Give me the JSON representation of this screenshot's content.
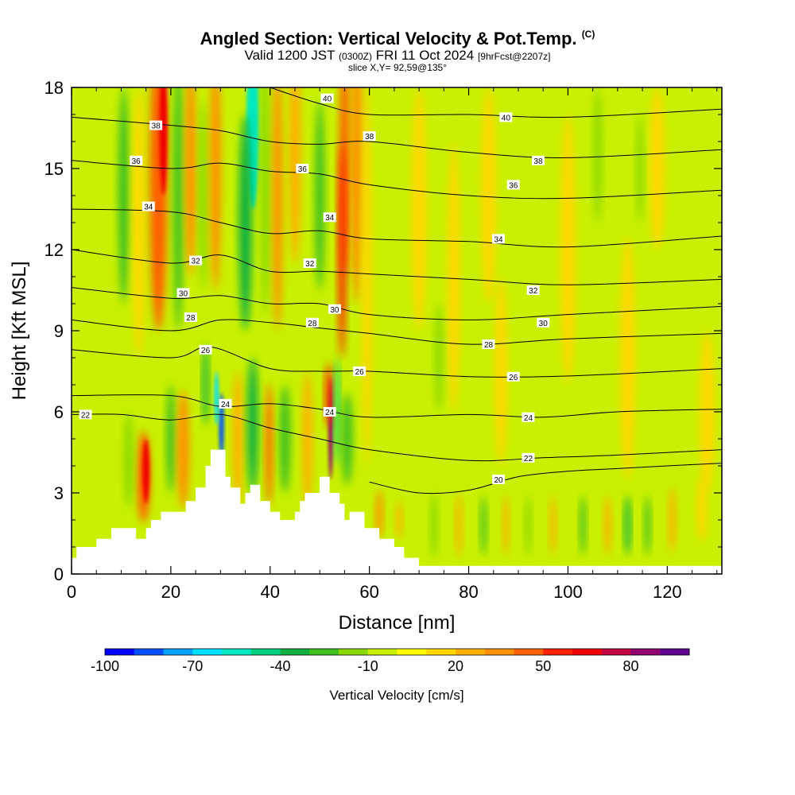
{
  "header": {
    "title_main": "Angled Section: Vertical Velocity & Pot.Temp.",
    "title_mark": "(C)",
    "valid_prefix": "Valid 1200 JST",
    "valid_utc": "(0300Z)",
    "valid_date": "FRI 11 Oct 2024",
    "valid_fcst": "[9hrFcst@2207z]",
    "slice": "slice X,Y= 92,59@135°"
  },
  "colors": {
    "background_field": "#c8f000",
    "terrain": "#ffffff",
    "contour": "#000000"
  },
  "chart_data": {
    "type": "heatmap",
    "xlabel": "Distance [nm]",
    "ylabel": "Height [Kft MSL]",
    "xlim": [
      0,
      131
    ],
    "ylim": [
      0,
      18
    ],
    "x_ticks": [
      0,
      20,
      40,
      60,
      80,
      100,
      120
    ],
    "y_ticks": [
      0,
      3,
      6,
      9,
      12,
      15,
      18
    ],
    "colorbar": {
      "label": "Vertical Velocity [cm/s]",
      "min": -100,
      "max": 100,
      "tick_labels": [
        "-100",
        "-70",
        "-40",
        "-10",
        "20",
        "50",
        "80"
      ],
      "tick_values": [
        -100,
        -70,
        -40,
        -10,
        20,
        50,
        80
      ],
      "colors": [
        "#0000ff",
        "#0050ff",
        "#00a0ff",
        "#00e0ff",
        "#00e8c0",
        "#00d080",
        "#10b040",
        "#40c020",
        "#88d800",
        "#c8f000",
        "#ffff00",
        "#ffd800",
        "#ffb000",
        "#ff9000",
        "#ff6000",
        "#ff2000",
        "#f00000",
        "#c00040",
        "#900070",
        "#600090"
      ]
    },
    "terrain_profile": [
      [
        0,
        0.6
      ],
      [
        1,
        0.6
      ],
      [
        1,
        1.0
      ],
      [
        5,
        1.0
      ],
      [
        5,
        1.3
      ],
      [
        8,
        1.3
      ],
      [
        8,
        1.7
      ],
      [
        13,
        1.7
      ],
      [
        13,
        1.3
      ],
      [
        15,
        1.3
      ],
      [
        15,
        1.7
      ],
      [
        16,
        1.7
      ],
      [
        16,
        2.0
      ],
      [
        18,
        2.0
      ],
      [
        18,
        2.3
      ],
      [
        23,
        2.3
      ],
      [
        23,
        2.7
      ],
      [
        25,
        2.7
      ],
      [
        25,
        3.2
      ],
      [
        27,
        3.2
      ],
      [
        27,
        4.0
      ],
      [
        28,
        4.0
      ],
      [
        28,
        4.6
      ],
      [
        31,
        4.6
      ],
      [
        31,
        3.6
      ],
      [
        32,
        3.6
      ],
      [
        32,
        3.2
      ],
      [
        34,
        3.2
      ],
      [
        34,
        2.6
      ],
      [
        35,
        2.6
      ],
      [
        35,
        3.0
      ],
      [
        36,
        3.0
      ],
      [
        36,
        3.3
      ],
      [
        38,
        3.3
      ],
      [
        38,
        2.7
      ],
      [
        40,
        2.7
      ],
      [
        40,
        2.3
      ],
      [
        42,
        2.3
      ],
      [
        42,
        2.0
      ],
      [
        45,
        2.0
      ],
      [
        45,
        2.3
      ],
      [
        46,
        2.3
      ],
      [
        46,
        2.7
      ],
      [
        47,
        2.7
      ],
      [
        47,
        3.0
      ],
      [
        50,
        3.0
      ],
      [
        50,
        3.6
      ],
      [
        52,
        3.6
      ],
      [
        52,
        3.0
      ],
      [
        54,
        3.0
      ],
      [
        54,
        2.6
      ],
      [
        55,
        2.6
      ],
      [
        55,
        2.0
      ],
      [
        56,
        2.0
      ],
      [
        56,
        2.3
      ],
      [
        59,
        2.3
      ],
      [
        59,
        1.7
      ],
      [
        62,
        1.7
      ],
      [
        62,
        1.3
      ],
      [
        65,
        1.3
      ],
      [
        65,
        1.0
      ],
      [
        67,
        1.0
      ],
      [
        67,
        0.6
      ],
      [
        70,
        0.6
      ],
      [
        70,
        0.3
      ],
      [
        131,
        0.3
      ]
    ],
    "theta_contours": [
      {
        "label": "20",
        "points": [
          [
            60,
            3.4
          ],
          [
            70,
            3.0
          ],
          [
            80,
            3.1
          ],
          [
            90,
            3.6
          ],
          [
            100,
            3.8
          ],
          [
            110,
            3.9
          ],
          [
            120,
            4.0
          ],
          [
            131,
            4.1
          ]
        ]
      },
      {
        "label": "22",
        "points": [
          [
            0,
            5.9
          ],
          [
            10,
            5.9
          ],
          [
            20,
            5.7
          ],
          [
            30,
            5.9
          ],
          [
            40,
            5.4
          ],
          [
            50,
            5.0
          ],
          [
            60,
            4.6
          ],
          [
            80,
            4.2
          ],
          [
            95,
            4.3
          ],
          [
            110,
            4.4
          ],
          [
            131,
            4.6
          ]
        ]
      },
      {
        "label": "24",
        "points": [
          [
            0,
            6.6
          ],
          [
            20,
            6.6
          ],
          [
            30,
            6.2
          ],
          [
            40,
            6.3
          ],
          [
            50,
            6.1
          ],
          [
            60,
            5.8
          ],
          [
            80,
            5.9
          ],
          [
            95,
            5.8
          ],
          [
            110,
            6.0
          ],
          [
            131,
            6.1
          ]
        ]
      },
      {
        "label": "26",
        "points": [
          [
            0,
            8.3
          ],
          [
            20,
            8.0
          ],
          [
            28,
            8.4
          ],
          [
            40,
            7.6
          ],
          [
            50,
            7.5
          ],
          [
            60,
            7.5
          ],
          [
            80,
            7.3
          ],
          [
            95,
            7.3
          ],
          [
            110,
            7.4
          ],
          [
            131,
            7.6
          ]
        ]
      },
      {
        "label": "28",
        "points": [
          [
            0,
            9.4
          ],
          [
            20,
            9.0
          ],
          [
            30,
            9.4
          ],
          [
            40,
            9.3
          ],
          [
            50,
            9.1
          ],
          [
            60,
            8.9
          ],
          [
            80,
            8.5
          ],
          [
            100,
            8.7
          ],
          [
            131,
            8.9
          ]
        ]
      },
      {
        "label": "30",
        "points": [
          [
            0,
            10.6
          ],
          [
            20,
            10.2
          ],
          [
            30,
            10.3
          ],
          [
            40,
            10.0
          ],
          [
            50,
            10.0
          ],
          [
            60,
            9.6
          ],
          [
            80,
            9.4
          ],
          [
            100,
            9.6
          ],
          [
            131,
            9.9
          ]
        ]
      },
      {
        "label": "32",
        "points": [
          [
            0,
            12.0
          ],
          [
            20,
            11.5
          ],
          [
            30,
            11.8
          ],
          [
            40,
            11.2
          ],
          [
            50,
            11.2
          ],
          [
            60,
            11.1
          ],
          [
            80,
            10.9
          ],
          [
            100,
            10.7
          ],
          [
            131,
            10.9
          ]
        ]
      },
      {
        "label": "34",
        "points": [
          [
            0,
            13.5
          ],
          [
            20,
            13.4
          ],
          [
            30,
            13.0
          ],
          [
            40,
            12.6
          ],
          [
            50,
            12.7
          ],
          [
            60,
            12.4
          ],
          [
            80,
            12.3
          ],
          [
            100,
            12.1
          ],
          [
            131,
            12.5
          ]
        ]
      },
      {
        "label": "36",
        "points": [
          [
            0,
            15.3
          ],
          [
            20,
            15.0
          ],
          [
            30,
            15.2
          ],
          [
            40,
            14.9
          ],
          [
            50,
            14.8
          ],
          [
            60,
            14.4
          ],
          [
            80,
            14.0
          ],
          [
            100,
            13.9
          ],
          [
            131,
            14.2
          ]
        ]
      },
      {
        "label": "38",
        "points": [
          [
            0,
            16.9
          ],
          [
            20,
            16.6
          ],
          [
            30,
            16.4
          ],
          [
            40,
            16.0
          ],
          [
            50,
            15.9
          ],
          [
            60,
            16.0
          ],
          [
            80,
            15.6
          ],
          [
            100,
            15.4
          ],
          [
            131,
            15.7
          ]
        ]
      },
      {
        "label": "40",
        "points": [
          [
            40,
            18.0
          ],
          [
            50,
            17.4
          ],
          [
            60,
            17.0
          ],
          [
            80,
            17.0
          ],
          [
            100,
            16.9
          ],
          [
            131,
            17.2
          ]
        ]
      }
    ],
    "contour_label_positions": [
      {
        "text": "20",
        "x": 86,
        "y": 3.5
      },
      {
        "text": "22",
        "x": 2.8,
        "y": 5.9
      },
      {
        "text": "22",
        "x": 92,
        "y": 4.3
      },
      {
        "text": "24",
        "x": 31,
        "y": 6.3
      },
      {
        "text": "24",
        "x": 52,
        "y": 6.0
      },
      {
        "text": "24",
        "x": 92,
        "y": 5.8
      },
      {
        "text": "26",
        "x": 27,
        "y": 8.3
      },
      {
        "text": "26",
        "x": 58,
        "y": 7.5
      },
      {
        "text": "26",
        "x": 89,
        "y": 7.3
      },
      {
        "text": "28",
        "x": 24,
        "y": 9.5
      },
      {
        "text": "28",
        "x": 48.5,
        "y": 9.3
      },
      {
        "text": "28",
        "x": 84,
        "y": 8.5
      },
      {
        "text": "30",
        "x": 22.5,
        "y": 10.4
      },
      {
        "text": "30",
        "x": 53,
        "y": 9.8
      },
      {
        "text": "30",
        "x": 95,
        "y": 9.3
      },
      {
        "text": "32",
        "x": 25,
        "y": 11.6
      },
      {
        "text": "32",
        "x": 48,
        "y": 11.5
      },
      {
        "text": "32",
        "x": 93,
        "y": 10.5
      },
      {
        "text": "34",
        "x": 15.5,
        "y": 13.6
      },
      {
        "text": "34",
        "x": 52,
        "y": 13.2
      },
      {
        "text": "34",
        "x": 86,
        "y": 12.4
      },
      {
        "text": "36",
        "x": 13,
        "y": 15.3
      },
      {
        "text": "36",
        "x": 46.5,
        "y": 15.0
      },
      {
        "text": "36",
        "x": 89,
        "y": 14.4
      },
      {
        "text": "38",
        "x": 17,
        "y": 16.6
      },
      {
        "text": "38",
        "x": 60,
        "y": 16.2
      },
      {
        "text": "38",
        "x": 94,
        "y": 15.3
      },
      {
        "text": "40",
        "x": 51.5,
        "y": 17.6
      },
      {
        "text": "40",
        "x": 87.5,
        "y": 16.9
      }
    ],
    "velocity_features": [
      {
        "x": 10.5,
        "y": 14.0,
        "w": 2.2,
        "h": 8.0,
        "v": -30
      },
      {
        "x": 13.5,
        "y": 13.0,
        "w": 2.5,
        "h": 10.0,
        "v": 15
      },
      {
        "x": 17.5,
        "y": 14.5,
        "w": 3.5,
        "h": 11.0,
        "v": 40
      },
      {
        "x": 18.5,
        "y": 16.5,
        "w": 1.6,
        "h": 5.0,
        "v": 60
      },
      {
        "x": 21.5,
        "y": 14.0,
        "w": 2.0,
        "h": 10.0,
        "v": -25
      },
      {
        "x": 24.0,
        "y": 15.0,
        "w": 2.2,
        "h": 8.0,
        "v": 35
      },
      {
        "x": 26.5,
        "y": 14.0,
        "w": 1.6,
        "h": 7.0,
        "v": -20
      },
      {
        "x": 29.0,
        "y": 15.0,
        "w": 2.2,
        "h": 9.0,
        "v": 30
      },
      {
        "x": 36.5,
        "y": 16.5,
        "w": 2.6,
        "h": 6.0,
        "v": -60
      },
      {
        "x": 35.0,
        "y": 13.0,
        "w": 2.6,
        "h": 8.0,
        "v": -35
      },
      {
        "x": 39.0,
        "y": 14.5,
        "w": 1.8,
        "h": 10.0,
        "v": -20
      },
      {
        "x": 41.5,
        "y": 14.0,
        "w": 2.0,
        "h": 10.0,
        "v": 30
      },
      {
        "x": 45.0,
        "y": 15.5,
        "w": 2.4,
        "h": 8.0,
        "v": 25
      },
      {
        "x": 55.0,
        "y": 15.5,
        "w": 2.0,
        "h": 9.0,
        "v": 45
      },
      {
        "x": 57.5,
        "y": 15.0,
        "w": 2.4,
        "h": 10.0,
        "v": 35
      },
      {
        "x": 50.0,
        "y": 14.0,
        "w": 2.0,
        "h": 7.0,
        "v": -25
      },
      {
        "x": 59.5,
        "y": 11.0,
        "w": 2.0,
        "h": 14.0,
        "v": 15
      },
      {
        "x": 54.5,
        "y": 12.0,
        "w": 1.6,
        "h": 8.0,
        "v": 50
      },
      {
        "x": 14.5,
        "y": 3.6,
        "w": 2.6,
        "h": 3.4,
        "v": 40
      },
      {
        "x": 15.0,
        "y": 3.8,
        "w": 1.4,
        "h": 2.4,
        "v": 60
      },
      {
        "x": 20.0,
        "y": 5.0,
        "w": 1.8,
        "h": 4.0,
        "v": -30
      },
      {
        "x": 22.5,
        "y": 4.6,
        "w": 2.4,
        "h": 4.4,
        "v": 35
      },
      {
        "x": 11.5,
        "y": 4.2,
        "w": 1.8,
        "h": 3.5,
        "v": -20
      },
      {
        "x": 27.0,
        "y": 7.0,
        "w": 1.2,
        "h": 3.0,
        "v": -40
      },
      {
        "x": 30.2,
        "y": 5.5,
        "w": 1.0,
        "h": 2.4,
        "v": -90
      },
      {
        "x": 29.2,
        "y": 6.5,
        "w": 0.9,
        "h": 2.0,
        "v": -70
      },
      {
        "x": 33.5,
        "y": 5.0,
        "w": 2.0,
        "h": 5.0,
        "v": 20
      },
      {
        "x": 36.5,
        "y": 5.5,
        "w": 2.2,
        "h": 5.0,
        "v": -35
      },
      {
        "x": 39.8,
        "y": 4.8,
        "w": 1.4,
        "h": 4.5,
        "v": 45
      },
      {
        "x": 43.0,
        "y": 5.0,
        "w": 2.2,
        "h": 4.0,
        "v": -30
      },
      {
        "x": 47.5,
        "y": 5.0,
        "w": 2.0,
        "h": 5.0,
        "v": 20
      },
      {
        "x": 52.2,
        "y": 5.4,
        "w": 0.9,
        "h": 3.8,
        "v": 80
      },
      {
        "x": 51.8,
        "y": 6.6,
        "w": 1.4,
        "h": 2.4,
        "v": 50
      },
      {
        "x": 53.5,
        "y": 6.0,
        "w": 1.0,
        "h": 4.0,
        "v": -45
      },
      {
        "x": 55.5,
        "y": 5.0,
        "w": 2.2,
        "h": 3.4,
        "v": -25
      },
      {
        "x": 62.0,
        "y": 2.2,
        "w": 1.4,
        "h": 1.8,
        "v": 30
      },
      {
        "x": 66.0,
        "y": 2.0,
        "w": 1.2,
        "h": 1.4,
        "v": 25
      },
      {
        "x": 73.0,
        "y": 1.8,
        "w": 1.4,
        "h": 2.4,
        "v": -20
      },
      {
        "x": 78.0,
        "y": 1.8,
        "w": 1.2,
        "h": 2.4,
        "v": 20
      },
      {
        "x": 83.0,
        "y": 1.8,
        "w": 1.2,
        "h": 2.2,
        "v": -25
      },
      {
        "x": 87.5,
        "y": 1.8,
        "w": 1.2,
        "h": 2.2,
        "v": 25
      },
      {
        "x": 92.0,
        "y": 1.8,
        "w": 1.2,
        "h": 2.2,
        "v": -20
      },
      {
        "x": 97.0,
        "y": 1.8,
        "w": 1.2,
        "h": 2.2,
        "v": 20
      },
      {
        "x": 103.0,
        "y": 1.8,
        "w": 1.2,
        "h": 2.2,
        "v": -30
      },
      {
        "x": 108.0,
        "y": 1.8,
        "w": 1.4,
        "h": 2.2,
        "v": 20
      },
      {
        "x": 112.0,
        "y": 1.8,
        "w": 1.2,
        "h": 2.2,
        "v": -35
      },
      {
        "x": 116.0,
        "y": 1.8,
        "w": 1.2,
        "h": 2.2,
        "v": -25
      },
      {
        "x": 121.0,
        "y": 2.0,
        "w": 1.4,
        "h": 2.4,
        "v": 20
      },
      {
        "x": 127.0,
        "y": 2.4,
        "w": 2.0,
        "h": 2.4,
        "v": 15
      },
      {
        "x": 70.0,
        "y": 13.5,
        "w": 3.0,
        "h": 9.0,
        "v": 15
      },
      {
        "x": 77.0,
        "y": 11.0,
        "w": 2.5,
        "h": 10.0,
        "v": 15
      },
      {
        "x": 84.0,
        "y": 14.0,
        "w": 3.0,
        "h": 8.0,
        "v": 15
      },
      {
        "x": 86.5,
        "y": 7.5,
        "w": 2.5,
        "h": 7.0,
        "v": 15
      },
      {
        "x": 100.0,
        "y": 12.0,
        "w": 3.0,
        "h": 10.0,
        "v": 15
      },
      {
        "x": 112.0,
        "y": 8.0,
        "w": 3.0,
        "h": 9.0,
        "v": 15
      },
      {
        "x": 118.0,
        "y": 15.0,
        "w": 3.0,
        "h": 6.0,
        "v": 15
      },
      {
        "x": 128.0,
        "y": 6.0,
        "w": 3.0,
        "h": 6.0,
        "v": 15
      },
      {
        "x": 106.0,
        "y": 15.5,
        "w": 1.6,
        "h": 5.0,
        "v": -20
      },
      {
        "x": 114.5,
        "y": 15.0,
        "w": 1.4,
        "h": 4.0,
        "v": -20
      },
      {
        "x": 74.0,
        "y": 8.0,
        "w": 1.6,
        "h": 4.0,
        "v": -15
      }
    ]
  }
}
